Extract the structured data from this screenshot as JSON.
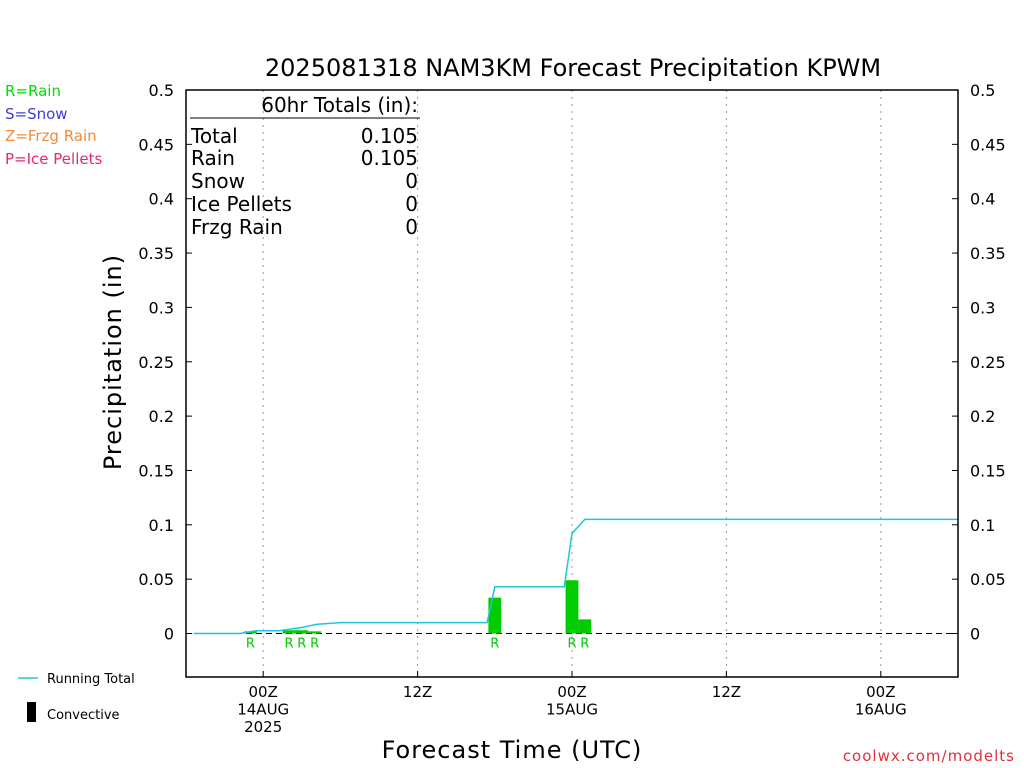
{
  "title": "2025081318 NAM3KM Forecast Precipitation KPWM",
  "legend_types": [
    {
      "label": "R=Rain",
      "color": "#00dd00"
    },
    {
      "label": "S=Snow",
      "color": "#3c3cdc"
    },
    {
      "label": "Z=Frzg Rain",
      "color": "#f08c3c"
    },
    {
      "label": "P=Ice Pellets",
      "color": "#e6287a"
    }
  ],
  "totals_box": {
    "heading": "60hr Totals (in):",
    "rows": [
      {
        "label": "Total",
        "value": "0.105"
      },
      {
        "label": "Rain",
        "value": "0.105"
      },
      {
        "label": "Snow",
        "value": "0"
      },
      {
        "label": "Ice Pellets",
        "value": "0"
      },
      {
        "label": "Frzg Rain",
        "value": "0"
      }
    ]
  },
  "bottom_legend": {
    "running_total": "Running Total",
    "convective": "Convective"
  },
  "source": "coolwx.com/modelts",
  "colors": {
    "running_total": "#1ec8d2",
    "precip_bar": "#00cc00",
    "rain_label": "#00cc00"
  },
  "chart_data": {
    "type": "bar",
    "title": "2025081318 NAM3KM Forecast Precipitation KPWM",
    "xlabel": "Forecast Time (UTC)",
    "ylabel": "Precipitation (in)",
    "ylim": [
      -0.04,
      0.5
    ],
    "yticks": [
      "0",
      "0.05",
      "0.1",
      "0.15",
      "0.2",
      "0.25",
      "0.3",
      "0.35",
      "0.4",
      "0.45",
      "0.5"
    ],
    "xrange_hours": [
      -5,
      45
    ],
    "xticks": [
      {
        "hour": 0,
        "lines": [
          "00Z",
          "14AUG",
          "2025"
        ]
      },
      {
        "hour": 10,
        "lines": [
          "12Z"
        ]
      },
      {
        "hour": 20,
        "lines": [
          "00Z",
          "15AUG"
        ]
      },
      {
        "hour": 30,
        "lines": [
          "12Z"
        ]
      },
      {
        "hour": 40,
        "lines": [
          "00Z",
          "16AUG"
        ]
      }
    ],
    "bars": [
      {
        "hour": -0.83,
        "value": 0.002,
        "ptype": "R"
      },
      {
        "hour": 1.67,
        "value": 0.003,
        "ptype": "R"
      },
      {
        "hour": 2.5,
        "value": 0.003,
        "ptype": "R"
      },
      {
        "hour": 3.33,
        "value": 0.002,
        "ptype": "R"
      },
      {
        "hour": 15.0,
        "value": 0.033,
        "ptype": "R"
      },
      {
        "hour": 20.0,
        "value": 0.049,
        "ptype": "R"
      },
      {
        "hour": 20.83,
        "value": 0.013,
        "ptype": "R"
      }
    ],
    "running_total": {
      "x": [
        -4.5,
        -1.5,
        -0.5,
        1,
        2.5,
        3.5,
        5,
        14.5,
        15,
        19.5,
        20,
        20.83,
        45
      ],
      "y": [
        0,
        0,
        0.0025,
        0.0025,
        0.0055,
        0.0085,
        0.01,
        0.01,
        0.043,
        0.043,
        0.092,
        0.105,
        0.105
      ]
    },
    "grid": "vertical-dotted",
    "legend": "left-margin"
  }
}
